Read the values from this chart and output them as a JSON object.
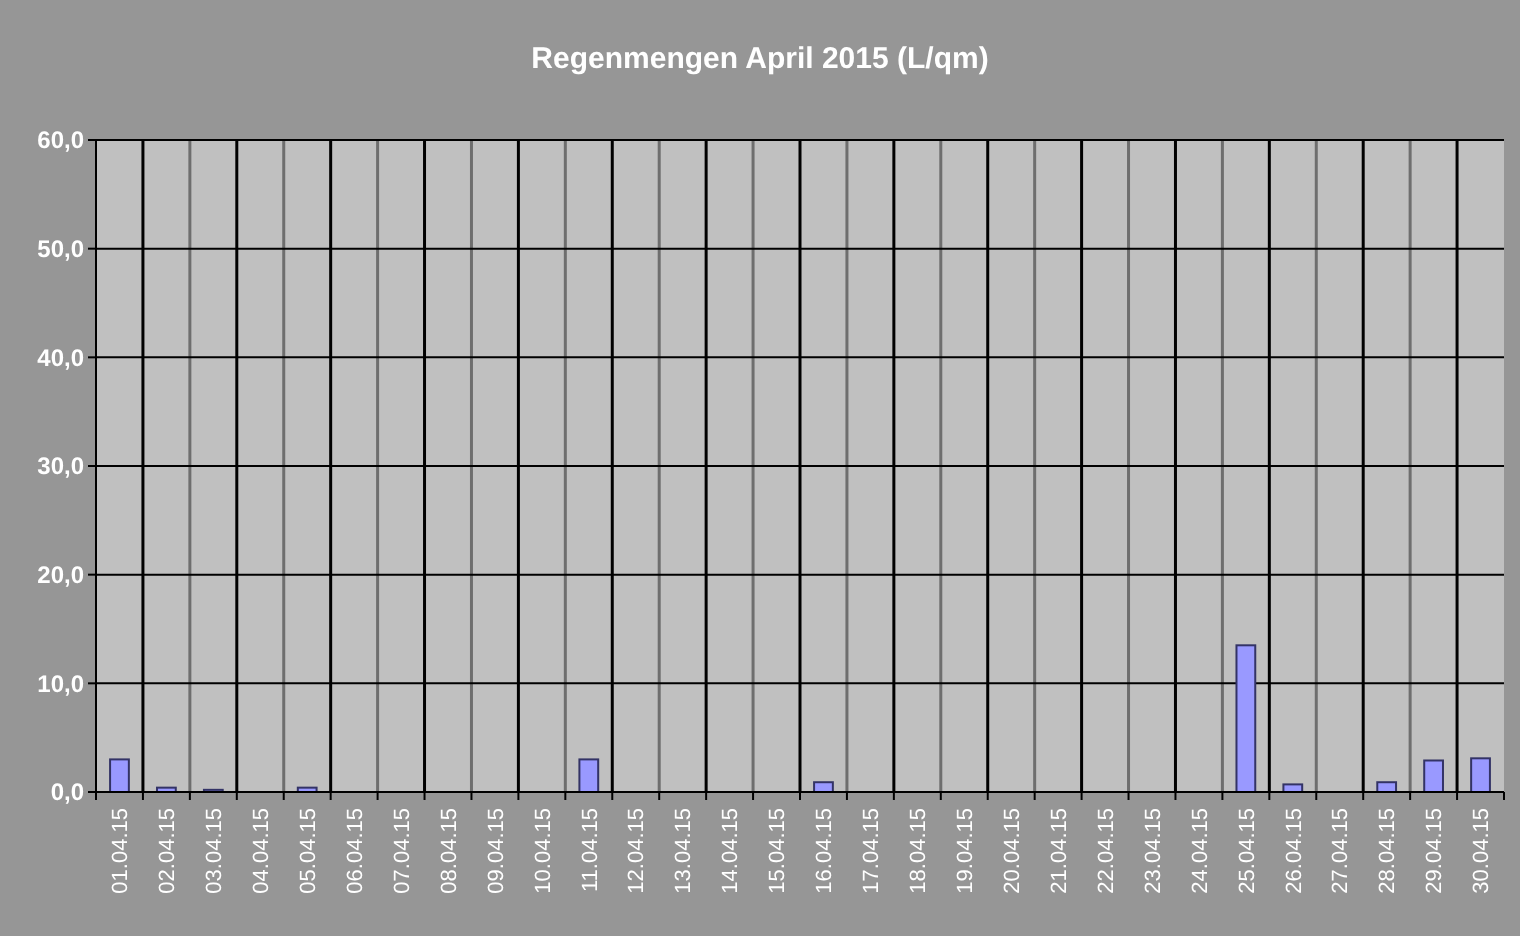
{
  "chart_data": {
    "type": "bar",
    "title": "Regenmengen April 2015 (L/qm)",
    "categories": [
      "01.04.15",
      "02.04.15",
      "03.04.15",
      "04.04.15",
      "05.04.15",
      "06.04.15",
      "07.04.15",
      "08.04.15",
      "09.04.15",
      "10.04.15",
      "11.04.15",
      "12.04.15",
      "13.04.15",
      "14.04.15",
      "15.04.15",
      "16.04.15",
      "17.04.15",
      "18.04.15",
      "19.04.15",
      "20.04.15",
      "21.04.15",
      "22.04.15",
      "23.04.15",
      "24.04.15",
      "25.04.15",
      "26.04.15",
      "27.04.15",
      "28.04.15",
      "29.04.15",
      "30.04.15"
    ],
    "values": [
      3.0,
      0.4,
      0.2,
      0,
      0.4,
      0,
      0,
      0,
      0,
      0,
      3.0,
      0,
      0,
      0,
      0,
      0.9,
      0,
      0,
      0,
      0,
      0,
      0,
      0,
      0,
      13.5,
      0.7,
      0,
      0.9,
      2.9,
      3.1
    ],
    "color": "#9999ff",
    "ylim": [
      0,
      60
    ],
    "yticks": [
      {
        "value": 0,
        "label": "0,0"
      },
      {
        "value": 10,
        "label": "10,0"
      },
      {
        "value": 20,
        "label": "20,0"
      },
      {
        "value": 30,
        "label": "30,0"
      },
      {
        "value": 40,
        "label": "40,0"
      },
      {
        "value": 50,
        "label": "50,0"
      },
      {
        "value": 60,
        "label": "60,0"
      }
    ],
    "grid": true
  }
}
